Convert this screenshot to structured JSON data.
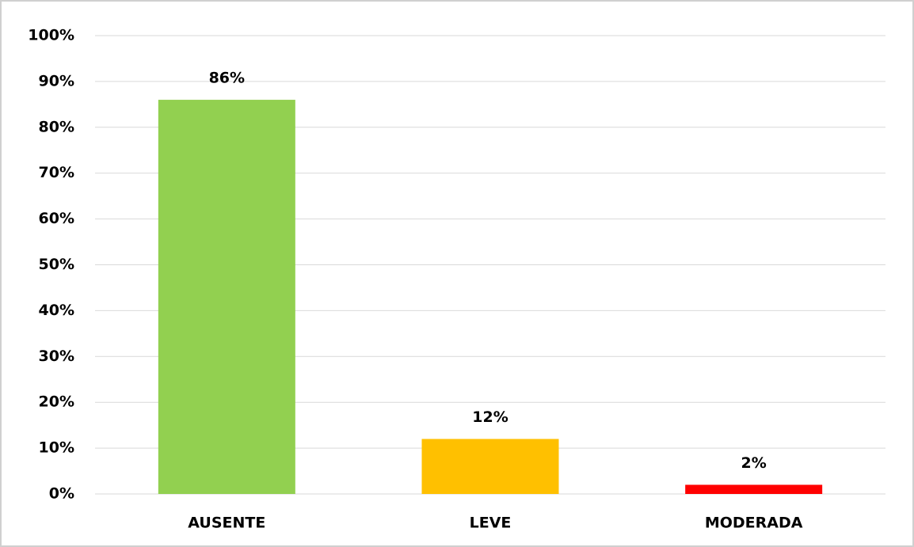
{
  "chart_data": {
    "type": "bar",
    "categories": [
      "AUSENTE",
      "LEVE",
      "MODERADA"
    ],
    "values": [
      86,
      12,
      2
    ],
    "value_labels": [
      "86%",
      "12%",
      "2%"
    ],
    "colors": [
      "#92d050",
      "#ffc000",
      "#ff0000"
    ],
    "ylim": [
      0,
      100
    ],
    "yticks": [
      {
        "value": 0,
        "label": "0%"
      },
      {
        "value": 10,
        "label": "10%"
      },
      {
        "value": 20,
        "label": "20%"
      },
      {
        "value": 30,
        "label": "30%"
      },
      {
        "value": 40,
        "label": "40%"
      },
      {
        "value": 50,
        "label": "50%"
      },
      {
        "value": 60,
        "label": "60%"
      },
      {
        "value": 70,
        "label": "70%"
      },
      {
        "value": 80,
        "label": "80%"
      },
      {
        "value": 90,
        "label": "90%"
      },
      {
        "value": 100,
        "label": "100%"
      }
    ],
    "grid": true
  }
}
